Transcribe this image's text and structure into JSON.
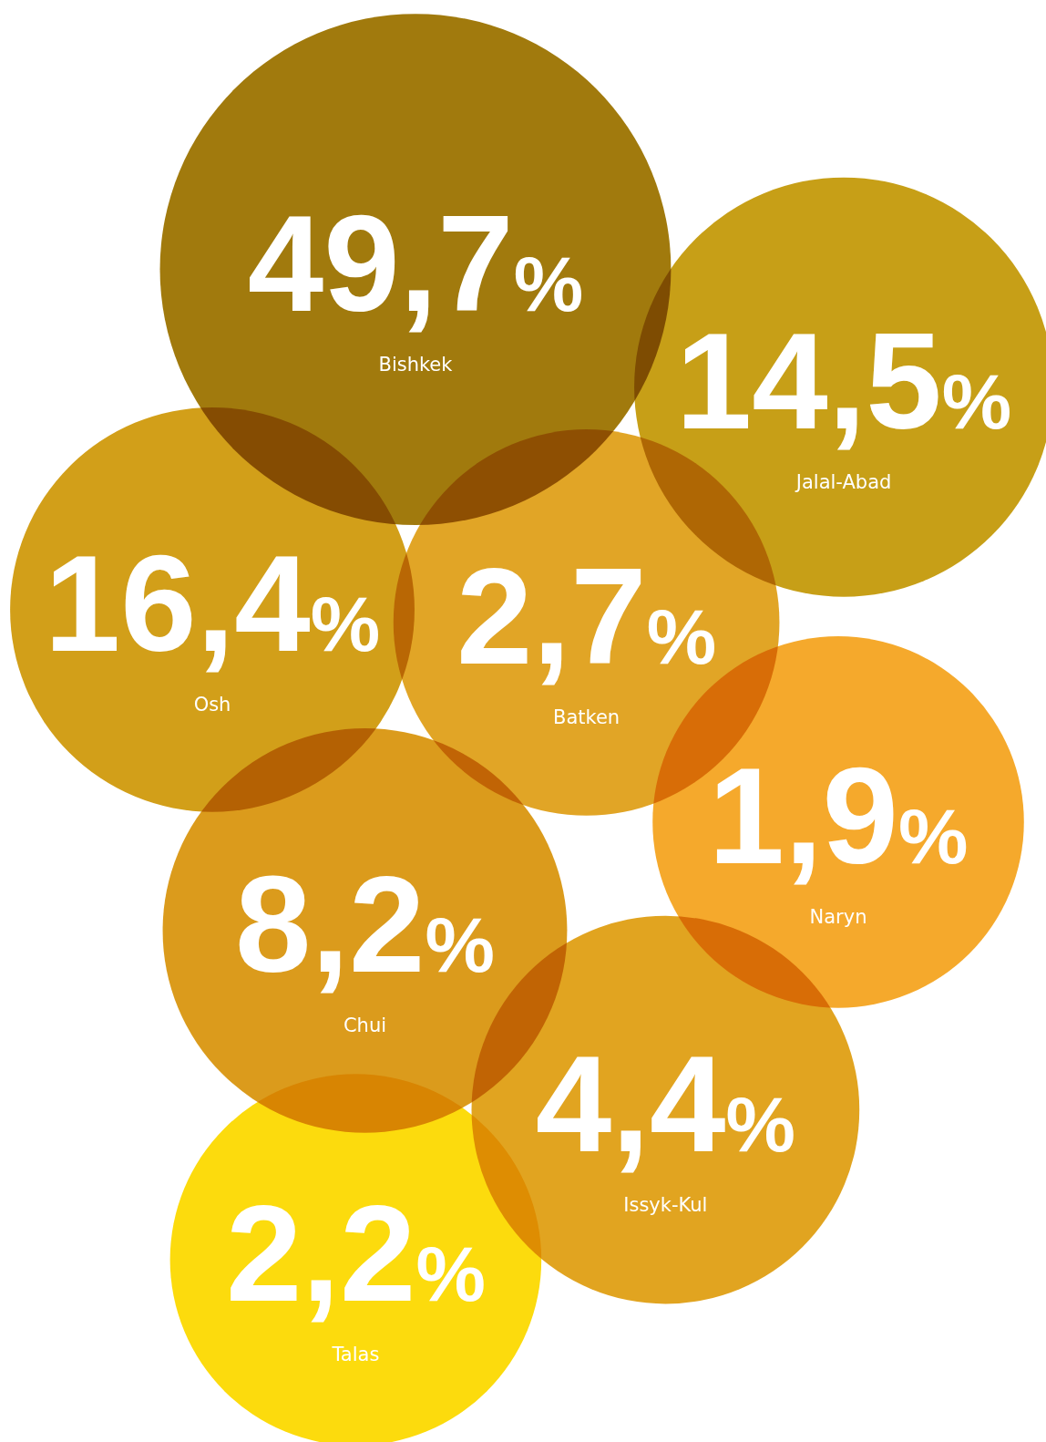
{
  "chart_data": {
    "type": "other",
    "categories": [
      "Bishkek",
      "Jalal-Abad",
      "Osh",
      "Batken",
      "Naryn",
      "Chui",
      "Issyk-Kul",
      "Talas"
    ],
    "values": [
      49.7,
      14.5,
      16.4,
      2.7,
      1.9,
      8.2,
      4.4,
      2.2
    ],
    "value_labels": [
      "49,7%",
      "14,5%",
      "16,4%",
      "2,7%",
      "1,9%",
      "8,2%",
      "4,4%",
      "2,2%"
    ],
    "colors": [
      "#9c7300",
      "#c49a0a",
      "#d09a0c",
      "#e0a01a",
      "#f5a520",
      "#d9960f",
      "#e09f14",
      "#fcd900"
    ]
  }
}
